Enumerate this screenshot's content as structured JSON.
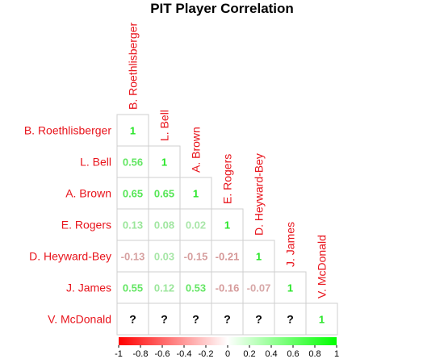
{
  "chart_data": {
    "type": "heatmap",
    "title": "PIT Player Correlation",
    "players": [
      "B. Roethlisberger",
      "L. Bell",
      "A. Brown",
      "E. Rogers",
      "D. Heyward-Bey",
      "J. James",
      "V. McDonald"
    ],
    "matrix": [
      [
        "1"
      ],
      [
        "0.56",
        "1"
      ],
      [
        "0.65",
        "0.65",
        "1"
      ],
      [
        "0.13",
        "0.08",
        "0.02",
        "1"
      ],
      [
        "-0.13",
        "0.03",
        "-0.15",
        "-0.21",
        "1"
      ],
      [
        "0.55",
        "0.12",
        "0.53",
        "-0.16",
        "-0.07",
        "1"
      ],
      [
        "?",
        "?",
        "?",
        "?",
        "?",
        "?",
        "1"
      ]
    ],
    "color_scale": {
      "ticks": [
        "-1",
        "-0.8",
        "-0.6",
        "-0.4",
        "-0.2",
        "0",
        "0.2",
        "0.4",
        "0.6",
        "0.8",
        "1"
      ],
      "range": [
        -1,
        1
      ],
      "low_color": "#ff0000",
      "mid_color": "#ffffff",
      "high_color": "#00ff00"
    },
    "label_color": "#e8141c",
    "layout": "lower-triangle"
  }
}
